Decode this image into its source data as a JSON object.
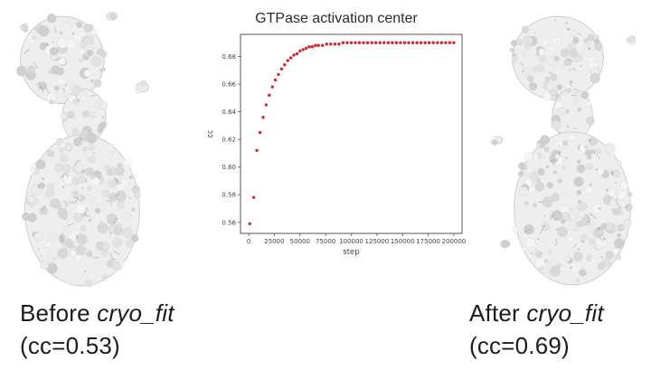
{
  "page": {
    "background": "#ffffff"
  },
  "images": {
    "before_alt": "cryo-EM density map with fitted model (before)",
    "after_alt": "cryo-EM density map with fitted model (after)"
  },
  "captions": {
    "before": {
      "prefix": "Before ",
      "italic": "cryo_fit",
      "line2": "(cc=0.53)"
    },
    "after": {
      "prefix": "After ",
      "italic": "cryo_fit",
      "line2": "(cc=0.69)"
    }
  },
  "chart_data": {
    "type": "scatter",
    "title": "GTPase activation center",
    "xlabel": "step",
    "ylabel": "cc",
    "xlim": [
      -8000,
      208000
    ],
    "ylim": [
      0.552,
      0.696
    ],
    "x_ticks": [
      0,
      25000,
      50000,
      75000,
      100000,
      125000,
      150000,
      175000,
      200000
    ],
    "y_ticks": [
      0.56,
      0.58,
      0.6,
      0.62,
      0.64,
      0.66,
      0.68
    ],
    "marker_color": "#d62728",
    "grid": false,
    "legend": "none",
    "points": [
      [
        1000,
        0.559
      ],
      [
        5000,
        0.578
      ],
      [
        8000,
        0.612
      ],
      [
        11000,
        0.625
      ],
      [
        14000,
        0.636
      ],
      [
        17000,
        0.645
      ],
      [
        20000,
        0.652
      ],
      [
        23000,
        0.658
      ],
      [
        26000,
        0.663
      ],
      [
        29000,
        0.667
      ],
      [
        32000,
        0.671
      ],
      [
        35000,
        0.674
      ],
      [
        38000,
        0.677
      ],
      [
        41000,
        0.679
      ],
      [
        44000,
        0.681
      ],
      [
        47000,
        0.682
      ],
      [
        50000,
        0.684
      ],
      [
        53000,
        0.685
      ],
      [
        56000,
        0.686
      ],
      [
        59000,
        0.687
      ],
      [
        62000,
        0.687
      ],
      [
        65000,
        0.688
      ],
      [
        68000,
        0.688
      ],
      [
        72000,
        0.688
      ],
      [
        76000,
        0.689
      ],
      [
        80000,
        0.689
      ],
      [
        84000,
        0.689
      ],
      [
        88000,
        0.689
      ],
      [
        92000,
        0.69
      ],
      [
        96000,
        0.69
      ],
      [
        100000,
        0.69
      ],
      [
        104000,
        0.69
      ],
      [
        108000,
        0.69
      ],
      [
        112000,
        0.69
      ],
      [
        116000,
        0.69
      ],
      [
        120000,
        0.69
      ],
      [
        124000,
        0.69
      ],
      [
        128000,
        0.69
      ],
      [
        132000,
        0.69
      ],
      [
        136000,
        0.69
      ],
      [
        140000,
        0.69
      ],
      [
        144000,
        0.69
      ],
      [
        148000,
        0.69
      ],
      [
        152000,
        0.69
      ],
      [
        156000,
        0.69
      ],
      [
        160000,
        0.69
      ],
      [
        164000,
        0.69
      ],
      [
        168000,
        0.69
      ],
      [
        172000,
        0.69
      ],
      [
        176000,
        0.69
      ],
      [
        180000,
        0.69
      ],
      [
        184000,
        0.69
      ],
      [
        188000,
        0.69
      ],
      [
        192000,
        0.69
      ],
      [
        196000,
        0.69
      ],
      [
        200000,
        0.69
      ]
    ]
  }
}
